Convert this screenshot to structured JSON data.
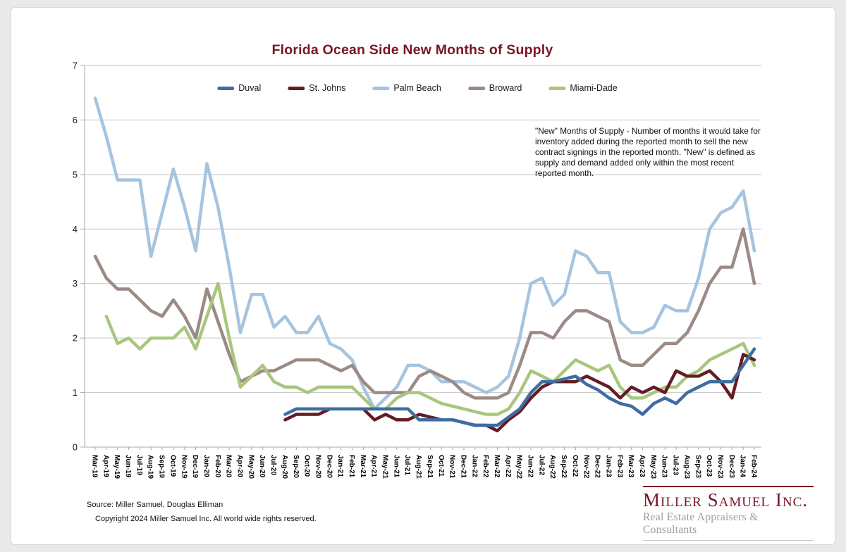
{
  "title": "Florida Ocean Side New Months of Supply",
  "annotation": {
    "text": "\"New\" Months of Supply - Number of months it would take for inventory added during the reported month to sell the new contract signings in the reported month. \"New\" is defined as supply and demand added only within the most recent reported month."
  },
  "source": {
    "line1": "Source: Miller Samuel, Douglas Elliman",
    "line2": "Copyright 2024 Miller Samuel Inc.  All world wide rights reserved."
  },
  "logo": {
    "name": "Miller Samuel Inc.",
    "tagline": "Real Estate Appraisers & Consultants"
  },
  "chart_data": {
    "type": "line",
    "title": "Florida Ocean Side New Months of Supply",
    "xlabel": "",
    "ylabel": "",
    "ylim": [
      0,
      7
    ],
    "yticks": [
      0,
      1,
      2,
      3,
      4,
      5,
      6,
      7
    ],
    "grid": true,
    "legend_position": "top-center",
    "x_labels": [
      "Mar-19",
      "Apr-19",
      "May-19",
      "Jun-19",
      "Jul-19",
      "Aug-19",
      "Sep-19",
      "Oct-19",
      "Nov-19",
      "Dec-19",
      "Jan-20",
      "Feb-20",
      "Mar-20",
      "Apr-20",
      "May-20",
      "Jun-20",
      "Jul-20",
      "Aug-20",
      "Sep-20",
      "Oct-20",
      "Nov-20",
      "Dec-20",
      "Jan-21",
      "Feb-21",
      "Mar-21",
      "Apr-21",
      "May-21",
      "Jun-21",
      "Jul-21",
      "Aug-21",
      "Sep-21",
      "Oct-21",
      "Nov-21",
      "Dec-21",
      "Jan-22",
      "Feb-22",
      "Mar-22",
      "Apr-22",
      "May-22",
      "Jun-22",
      "Jul-22",
      "Aug-22",
      "Sep-22",
      "Oct-22",
      "Nov-22",
      "Dec-22",
      "Jan-23",
      "Feb-23",
      "Mar-23",
      "Apr-23",
      "May-23",
      "Jun-23",
      "Jul-23",
      "Aug-23",
      "Sep-23",
      "Oct-23",
      "Nov-23",
      "Dec-23",
      "Jan-24",
      "Feb-24"
    ],
    "series": [
      {
        "name": "Duval",
        "color": "#3E6D9F",
        "z": 5,
        "values": [
          null,
          null,
          null,
          null,
          null,
          null,
          null,
          null,
          null,
          null,
          null,
          null,
          null,
          null,
          null,
          null,
          null,
          0.6,
          0.7,
          0.7,
          0.7,
          0.7,
          0.7,
          0.7,
          0.7,
          0.7,
          0.7,
          0.7,
          0.7,
          0.5,
          0.5,
          0.5,
          0.5,
          0.45,
          0.4,
          0.4,
          0.4,
          0.55,
          0.7,
          1.0,
          1.2,
          1.2,
          1.25,
          1.3,
          1.15,
          1.05,
          0.9,
          0.8,
          0.75,
          0.6,
          0.8,
          0.9,
          0.8,
          1.0,
          1.1,
          1.2,
          1.2,
          1.2,
          1.5,
          1.8
        ]
      },
      {
        "name": "St. Johns",
        "color": "#641C24",
        "z": 4,
        "values": [
          null,
          null,
          null,
          null,
          null,
          null,
          null,
          null,
          null,
          null,
          null,
          null,
          null,
          null,
          null,
          null,
          null,
          0.5,
          0.6,
          0.6,
          0.6,
          0.7,
          0.7,
          0.7,
          0.7,
          0.5,
          0.6,
          0.5,
          0.5,
          0.6,
          0.55,
          0.5,
          0.5,
          0.45,
          0.4,
          0.4,
          0.3,
          0.5,
          0.65,
          0.9,
          1.1,
          1.2,
          1.2,
          1.2,
          1.3,
          1.2,
          1.1,
          0.9,
          1.1,
          1.0,
          1.1,
          1.0,
          1.4,
          1.3,
          1.3,
          1.4,
          1.2,
          0.9,
          1.7,
          1.6
        ]
      },
      {
        "name": "Palm Beach",
        "color": "#A6C4DF",
        "z": 1,
        "values": [
          6.4,
          5.7,
          4.9,
          4.9,
          4.9,
          3.5,
          4.3,
          5.1,
          4.4,
          3.6,
          5.2,
          4.4,
          3.3,
          2.1,
          2.8,
          2.8,
          2.2,
          2.4,
          2.1,
          2.1,
          2.4,
          1.9,
          1.8,
          1.6,
          1.1,
          0.7,
          0.9,
          1.1,
          1.5,
          1.5,
          1.4,
          1.2,
          1.2,
          1.2,
          1.1,
          1.0,
          1.1,
          1.3,
          2.0,
          3.0,
          3.1,
          2.6,
          2.8,
          3.6,
          3.5,
          3.2,
          3.2,
          2.3,
          2.1,
          2.1,
          2.2,
          2.6,
          2.5,
          2.5,
          3.1,
          4.0,
          4.3,
          4.4,
          4.7,
          3.6
        ]
      },
      {
        "name": "Broward",
        "color": "#9B8A85",
        "z": 2,
        "values": [
          3.5,
          3.1,
          2.9,
          2.9,
          2.7,
          2.5,
          2.4,
          2.7,
          2.4,
          2.0,
          2.9,
          2.3,
          1.7,
          1.2,
          1.3,
          1.4,
          1.4,
          1.5,
          1.6,
          1.6,
          1.6,
          1.5,
          1.4,
          1.5,
          1.2,
          1.0,
          1.0,
          1.0,
          1.0,
          1.3,
          1.4,
          1.3,
          1.2,
          1.0,
          0.9,
          0.9,
          0.9,
          1.0,
          1.5,
          2.1,
          2.1,
          2.0,
          2.3,
          2.5,
          2.5,
          2.4,
          2.3,
          1.6,
          1.5,
          1.5,
          1.7,
          1.9,
          1.9,
          2.1,
          2.5,
          3.0,
          3.3,
          3.3,
          4.0,
          3.0
        ]
      },
      {
        "name": "Miami-Dade",
        "color": "#A9C67E",
        "z": 3,
        "values": [
          null,
          2.4,
          1.9,
          2.0,
          1.8,
          2.0,
          2.0,
          2.0,
          2.2,
          1.8,
          2.4,
          3.0,
          2.0,
          1.1,
          1.3,
          1.5,
          1.2,
          1.1,
          1.1,
          1.0,
          1.1,
          1.1,
          1.1,
          1.1,
          0.9,
          0.7,
          0.7,
          0.9,
          1.0,
          1.0,
          0.9,
          0.8,
          0.75,
          0.7,
          0.65,
          0.6,
          0.6,
          0.7,
          1.0,
          1.4,
          1.3,
          1.2,
          1.4,
          1.6,
          1.5,
          1.4,
          1.5,
          1.1,
          0.9,
          0.9,
          1.0,
          1.1,
          1.1,
          1.3,
          1.4,
          1.6,
          1.7,
          1.8,
          1.9,
          1.5
        ]
      }
    ]
  }
}
